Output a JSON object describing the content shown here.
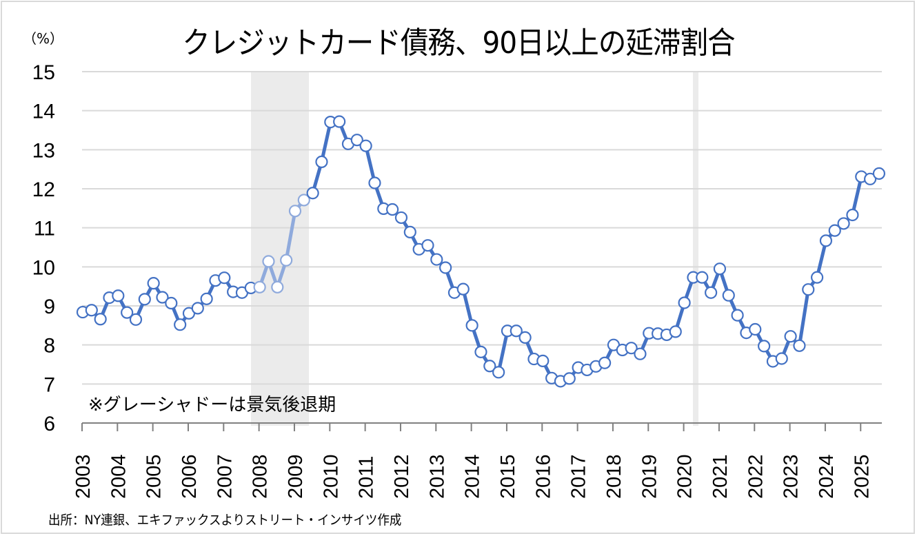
{
  "title": "クレジットカード債務、90日以上の延滞割合",
  "unit_label": "（%）",
  "note": "※グレーシャドーは景気後退期",
  "source": "出所：NY連銀、エキファックスよりストリート・インサイツ作成",
  "colors": {
    "line": "#4472c4",
    "line_recession": "#8faadc",
    "marker_fill": "#ffffff",
    "gridline": "#d9d9d9",
    "axis": "#808080",
    "recession_shade": "#ebebeb"
  },
  "chart_data": {
    "type": "line",
    "title": "クレジットカード債務、90日以上の延滞割合",
    "xlabel": "",
    "ylabel": "（%）",
    "ylim": [
      6,
      15
    ],
    "yticks": [
      6,
      7,
      8,
      9,
      10,
      11,
      12,
      13,
      14,
      15
    ],
    "xticks": [
      "2003",
      "2004",
      "2005",
      "2006",
      "2007",
      "2008",
      "2009",
      "2010",
      "2011",
      "2012",
      "2013",
      "2014",
      "2015",
      "2016",
      "2017",
      "2018",
      "2019",
      "2020",
      "2021",
      "2022",
      "2023",
      "2024",
      "2025"
    ],
    "grid": true,
    "legend": null,
    "frequency": "quarterly",
    "start": "2003Q1",
    "recession_periods": [
      {
        "start": "2007Q4",
        "end": "2009Q2"
      },
      {
        "start": "2020Q1",
        "end": "2020Q2"
      }
    ],
    "annotations": [
      "※グレーシャドーは景気後退期"
    ],
    "series": [
      {
        "name": "90日以上延滞割合",
        "x": [
          "2003Q1",
          "2003Q2",
          "2003Q3",
          "2003Q4",
          "2004Q1",
          "2004Q2",
          "2004Q3",
          "2004Q4",
          "2005Q1",
          "2005Q2",
          "2005Q3",
          "2005Q4",
          "2006Q1",
          "2006Q2",
          "2006Q3",
          "2006Q4",
          "2007Q1",
          "2007Q2",
          "2007Q3",
          "2007Q4",
          "2008Q1",
          "2008Q2",
          "2008Q3",
          "2008Q4",
          "2009Q1",
          "2009Q2",
          "2009Q3",
          "2009Q4",
          "2010Q1",
          "2010Q2",
          "2010Q3",
          "2010Q4",
          "2011Q1",
          "2011Q2",
          "2011Q3",
          "2011Q4",
          "2012Q1",
          "2012Q2",
          "2012Q3",
          "2012Q4",
          "2013Q1",
          "2013Q2",
          "2013Q3",
          "2013Q4",
          "2014Q1",
          "2014Q2",
          "2014Q3",
          "2014Q4",
          "2015Q1",
          "2015Q2",
          "2015Q3",
          "2015Q4",
          "2016Q1",
          "2016Q2",
          "2016Q3",
          "2016Q4",
          "2017Q1",
          "2017Q2",
          "2017Q3",
          "2017Q4",
          "2018Q1",
          "2018Q2",
          "2018Q3",
          "2018Q4",
          "2019Q1",
          "2019Q2",
          "2019Q3",
          "2019Q4",
          "2020Q1",
          "2020Q2",
          "2020Q3",
          "2020Q4",
          "2021Q1",
          "2021Q2",
          "2021Q3",
          "2021Q4",
          "2022Q1",
          "2022Q2",
          "2022Q3",
          "2022Q4",
          "2023Q1",
          "2023Q2",
          "2023Q3",
          "2023Q4",
          "2024Q1",
          "2024Q2",
          "2024Q3",
          "2024Q4",
          "2025Q1",
          "2025Q2",
          "2025Q3"
        ],
        "values": [
          8.84,
          8.89,
          8.66,
          9.21,
          9.26,
          8.83,
          8.65,
          9.17,
          9.58,
          9.22,
          9.07,
          8.52,
          8.81,
          8.94,
          9.18,
          9.65,
          9.72,
          9.36,
          9.34,
          9.46,
          9.48,
          10.14,
          9.48,
          10.17,
          11.43,
          11.71,
          11.89,
          12.69,
          13.71,
          13.72,
          13.15,
          13.25,
          13.1,
          12.15,
          11.49,
          11.47,
          11.26,
          10.89,
          10.45,
          10.55,
          10.19,
          9.98,
          9.34,
          9.43,
          8.5,
          7.82,
          7.46,
          7.3,
          8.36,
          8.36,
          8.19,
          7.64,
          7.59,
          7.15,
          7.07,
          7.14,
          7.42,
          7.36,
          7.45,
          7.54,
          8.0,
          7.87,
          7.92,
          7.77,
          8.3,
          8.29,
          8.26,
          8.34,
          9.08,
          9.73,
          9.73,
          9.34,
          9.95,
          9.27,
          8.76,
          8.31,
          8.4,
          7.97,
          7.58,
          7.65,
          8.22,
          7.98,
          9.42,
          9.73,
          10.67,
          10.93,
          11.11,
          11.33,
          12.31,
          12.25,
          12.39
        ]
      }
    ]
  }
}
